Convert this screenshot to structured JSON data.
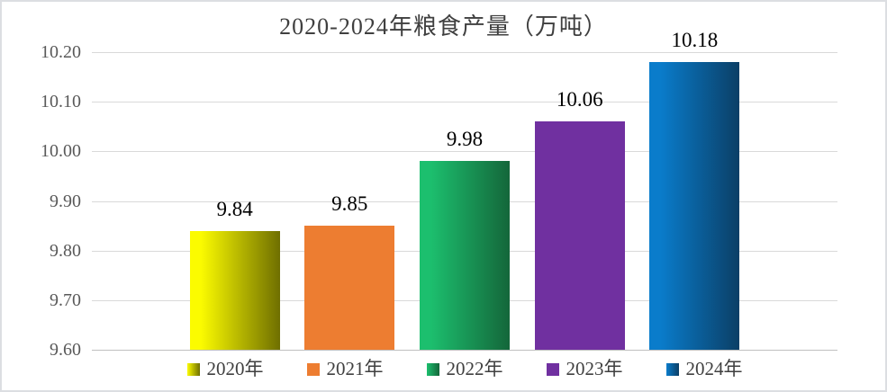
{
  "frame": {
    "background": "#FFFFFF",
    "border_color": "#DCDEE2"
  },
  "chart_data": {
    "type": "bar",
    "title": "2020-2024年粮食产量（万吨）",
    "categories": [
      "2020年",
      "2021年",
      "2022年",
      "2023年",
      "2024年"
    ],
    "values": [
      9.84,
      9.85,
      9.98,
      10.06,
      10.18
    ],
    "data_labels": [
      "9.84",
      "9.85",
      "9.98",
      "10.06",
      "10.18"
    ],
    "xlabel": "",
    "ylabel": "",
    "ylim": [
      9.6,
      10.2
    ],
    "ytick_step": 0.1,
    "ytick_labels": [
      "10.20",
      "10.10",
      "10.00",
      "9.90",
      "9.80",
      "9.70",
      "9.60"
    ],
    "grid": true,
    "legend_position": "bottom",
    "series_colors": [
      {
        "name": "2020年",
        "fill": "gradient",
        "from": "#FBFB00",
        "to": "#6F6F00"
      },
      {
        "name": "2021年",
        "fill": "solid",
        "from": "#ED7D31",
        "to": "#ED7D31"
      },
      {
        "name": "2022年",
        "fill": "gradient",
        "from": "#1CBF6E",
        "to": "#14663A"
      },
      {
        "name": "2023年",
        "fill": "solid",
        "from": "#7030A0",
        "to": "#7030A0"
      },
      {
        "name": "2024年",
        "fill": "gradient",
        "from": "#0A7CCB",
        "to": "#0B3F66"
      }
    ],
    "style_colors": {
      "gridline": "#D9D9D9",
      "axis_line": "#BFBFBF",
      "tick_label": "#595959",
      "data_label": "#000000",
      "title": "#3F3F3F",
      "legend_text": "#404040"
    }
  }
}
